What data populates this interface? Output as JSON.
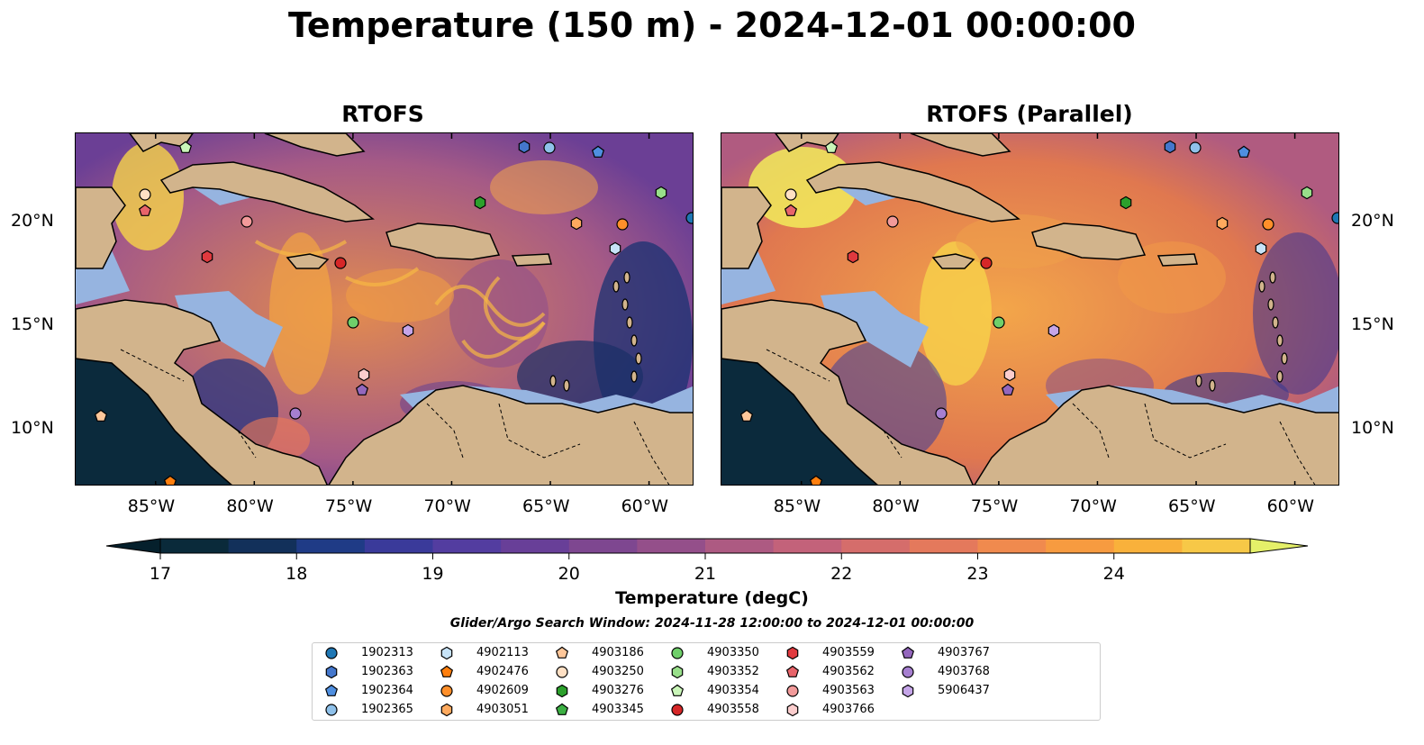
{
  "figure": {
    "title": "Temperature (150 m) - 2024-12-01 00:00:00",
    "panels": [
      {
        "title": "RTOFS"
      },
      {
        "title": "RTOFS (Parallel)"
      }
    ],
    "lon_ticks": [
      "85°W",
      "80°W",
      "75°W",
      "70°W",
      "65°W",
      "60°W"
    ],
    "lat_ticks": [
      "20°N",
      "15°N",
      "10°N"
    ],
    "colorbar": {
      "label": "Temperature (degC)",
      "ticks": [
        "17",
        "18",
        "19",
        "20",
        "21",
        "22",
        "23",
        "24"
      ],
      "colors": [
        "#0a2a3a",
        "#12305a",
        "#1f3b86",
        "#3a3a9a",
        "#533da0",
        "#683f98",
        "#7e4790",
        "#944f8a",
        "#ad5a82",
        "#c3627a",
        "#d56d6b",
        "#e4795c",
        "#f08a4e",
        "#f79b40",
        "#f9b13b",
        "#f7c847"
      ],
      "under_color": "#05202c",
      "over_color": "#e5f069"
    },
    "search_window": "Glider/Argo Search Window: 2024-11-28 12:00:00 to 2024-12-01 00:00:00",
    "colors": {
      "ocean_bg": "#d0894f",
      "shelf": "#96b4e0",
      "land": "#d2b48c",
      "deep": "#0b2a3c"
    }
  },
  "legend": [
    {
      "id": "1902313",
      "color": "#1f77b4",
      "marker": "circle"
    },
    {
      "id": "1902363",
      "color": "#4477cc",
      "marker": "hexagon"
    },
    {
      "id": "1902364",
      "color": "#4f8fe0",
      "marker": "pentagon"
    },
    {
      "id": "1902365",
      "color": "#8fc1ea",
      "marker": "circle"
    },
    {
      "id": "4902113",
      "color": "#c7e3f7",
      "marker": "hexagon"
    },
    {
      "id": "4902476",
      "color": "#ff7f0e",
      "marker": "pentagon"
    },
    {
      "id": "4902609",
      "color": "#ff8f2a",
      "marker": "circle"
    },
    {
      "id": "4903051",
      "color": "#ffaa5e",
      "marker": "hexagon"
    },
    {
      "id": "4903186",
      "color": "#ffc79a",
      "marker": "pentagon"
    },
    {
      "id": "4903250",
      "color": "#ffe0c4",
      "marker": "circle"
    },
    {
      "id": "4903276",
      "color": "#2ca02c",
      "marker": "hexagon"
    },
    {
      "id": "4903345",
      "color": "#3cb043",
      "marker": "pentagon"
    },
    {
      "id": "4903350",
      "color": "#6fcf6a",
      "marker": "circle"
    },
    {
      "id": "4903352",
      "color": "#98df8a",
      "marker": "hexagon"
    },
    {
      "id": "4903354",
      "color": "#c9f5b8",
      "marker": "pentagon"
    },
    {
      "id": "4903558",
      "color": "#d62728",
      "marker": "circle"
    },
    {
      "id": "4903559",
      "color": "#e0393e",
      "marker": "hexagon"
    },
    {
      "id": "4903562",
      "color": "#e8646a",
      "marker": "pentagon"
    },
    {
      "id": "4903563",
      "color": "#f29a9a",
      "marker": "circle"
    },
    {
      "id": "4903766",
      "color": "#fbcdcd",
      "marker": "hexagon"
    },
    {
      "id": "4903767",
      "color": "#9467bd",
      "marker": "pentagon"
    },
    {
      "id": "4903768",
      "color": "#a67fd0",
      "marker": "circle"
    },
    {
      "id": "5906437",
      "color": "#c5a5e8",
      "marker": "hexagon"
    }
  ]
}
